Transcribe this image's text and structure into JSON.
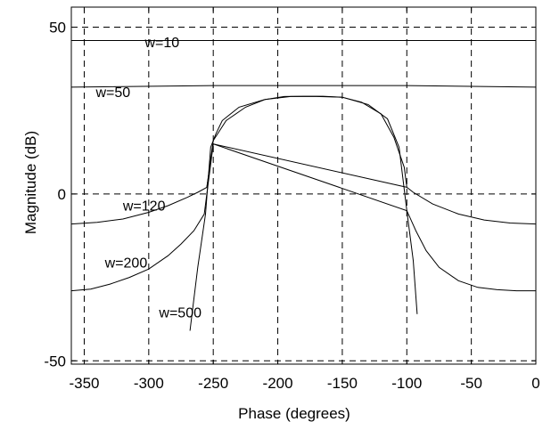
{
  "chart_data": {
    "type": "line",
    "title": "",
    "xlabel": "Phase (degrees)",
    "ylabel": "Magnitude (dB)",
    "xlim": [
      -360,
      0
    ],
    "ylim": [
      -51,
      56
    ],
    "xticks": [
      -350,
      -300,
      -250,
      -200,
      -150,
      -100,
      -50,
      0
    ],
    "yticks": [
      -50,
      0,
      50
    ],
    "grid": true,
    "series": [
      {
        "name": "",
        "label": "w=10",
        "x": [
          -360,
          0
        ],
        "y": [
          46,
          46
        ]
      },
      {
        "name": "",
        "label": "w=50",
        "x": [
          -360,
          -250,
          -100,
          0
        ],
        "y": [
          32,
          32.5,
          32.5,
          32
        ]
      },
      {
        "name": "",
        "label": "",
        "x": [
          -255,
          -250,
          -240,
          -225,
          -210,
          -195,
          -180,
          -165,
          -150,
          -135,
          -120,
          -110,
          -102,
          -100
        ],
        "y": [
          2,
          16,
          22,
          26,
          28.3,
          29.2,
          29.3,
          29.3,
          29,
          27.5,
          24,
          17,
          8,
          2
        ]
      },
      {
        "name": "",
        "label": "w=120",
        "x": [
          -360,
          -340,
          -320,
          -300,
          -285,
          -270,
          -262,
          -255,
          -250,
          -100,
          -95,
          -80,
          -60,
          -40,
          -20,
          0
        ],
        "y": [
          -9,
          -8.5,
          -7.5,
          -5.5,
          -3.5,
          -1,
          0.5,
          2,
          15,
          2,
          0.5,
          -3,
          -6,
          -7.8,
          -8.7,
          -9
        ]
      },
      {
        "name": "",
        "label": "w=200",
        "x": [
          -360,
          -345,
          -330,
          -315,
          -300,
          -285,
          -275,
          -265,
          -257,
          -250,
          -100,
          -93,
          -85,
          -75,
          -60,
          -45,
          -30,
          -15,
          0
        ],
        "y": [
          -29,
          -28.5,
          -27,
          -25,
          -22.5,
          -18.5,
          -15,
          -11,
          -6,
          15,
          -5,
          -11,
          -17,
          -22,
          -26,
          -28,
          -28.7,
          -29,
          -29
        ]
      },
      {
        "name": "",
        "label": "w=500",
        "x": [
          -268,
          -262,
          -256,
          -252,
          -248,
          -243,
          -230,
          -210,
          -190,
          -170,
          -150,
          -130,
          -115,
          -106,
          -100,
          -95,
          -92
        ],
        "y": [
          -41,
          -22,
          -6,
          14,
          18,
          22,
          26,
          28.3,
          29.2,
          29.2,
          29,
          26.8,
          22.5,
          14,
          -5,
          -20,
          -36
        ]
      }
    ],
    "annotations": [
      {
        "text": "w=10",
        "x": -303,
        "y": 44
      },
      {
        "text": "w=50",
        "x": -341,
        "y": 29
      },
      {
        "text": "w=120",
        "x": -320,
        "y": -5
      },
      {
        "text": "w=200",
        "x": -334,
        "y": -22
      },
      {
        "text": "w=500",
        "x": -292,
        "y": -37
      }
    ]
  }
}
